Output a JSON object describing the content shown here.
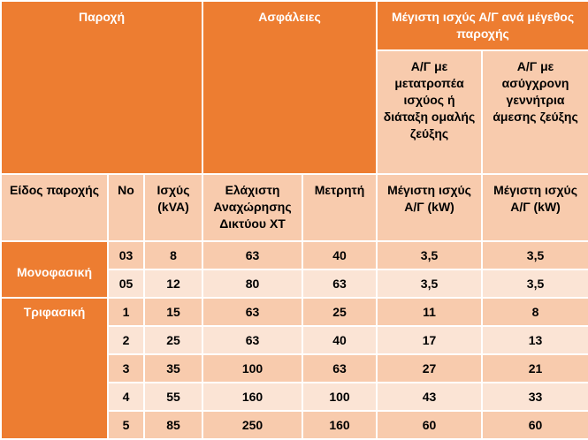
{
  "headers": {
    "supply": "Παροχή",
    "fuses": "Ασφάλειες",
    "max_power_group": "Μέγιστη ισχύς Α/Γ ανά μέγεθος παροχής",
    "inverter_col": "Α/Γ με μετατροπέα ισχύος ή διάταξη ομαλής ζεύξης",
    "async_col": "Α/Γ με ασύγχρονη γεννήτρια άμεσης ζεύξης"
  },
  "subheaders": {
    "supply_type": "Είδος παροχής",
    "no": "Νο",
    "power": "Ισχύς (kVA)",
    "min_lv_departure": "Ελάχιστη Αναχώρησης Δικτύου ΧΤ",
    "meter": "Μετρητή",
    "max_power_1": "Μέγιστη ισχύς Α/Γ (kW)",
    "max_power_2": "Μέγιστη ισχύς Α/Γ (kW)"
  },
  "rows": [
    {
      "type": "Μονοφασική",
      "no": "03",
      "kva": "8",
      "min_dep": "63",
      "meter": "40",
      "inv": "3,5",
      "async": "3,5"
    },
    {
      "type": "",
      "no": "05",
      "kva": "12",
      "min_dep": "80",
      "meter": "63",
      "inv": "3,5",
      "async": "3,5"
    },
    {
      "type": "Τριφασική",
      "no": "1",
      "kva": "15",
      "min_dep": "63",
      "meter": "25",
      "inv": "11",
      "async": "8"
    },
    {
      "type": "",
      "no": "2",
      "kva": "25",
      "min_dep": "63",
      "meter": "40",
      "inv": "17",
      "async": "13"
    },
    {
      "type": "",
      "no": "3",
      "kva": "35",
      "min_dep": "100",
      "meter": "63",
      "inv": "27",
      "async": "21"
    },
    {
      "type": "",
      "no": "4",
      "kva": "55",
      "min_dep": "160",
      "meter": "100",
      "inv": "43",
      "async": "33"
    },
    {
      "type": "",
      "no": "5",
      "kva": "85",
      "min_dep": "250",
      "meter": "160",
      "inv": "60",
      "async": "60"
    }
  ],
  "colors": {
    "header_orange": "#ed7d31",
    "band_dark": "#f8cbad",
    "band_light": "#fbe4d5"
  }
}
